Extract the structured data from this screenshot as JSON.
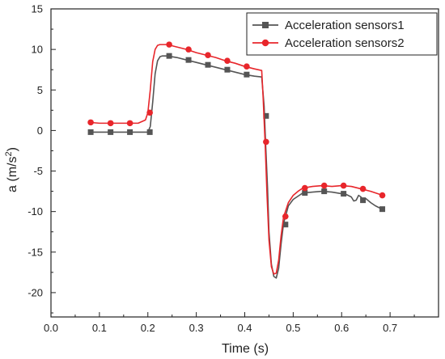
{
  "chart_data": {
    "type": "line",
    "xlabel": "Time (s)",
    "ylabel_main": "a (m/s",
    "ylabel_sup": "2",
    "ylabel_close": ")",
    "xlim": [
      0.0,
      0.8
    ],
    "ylim": [
      -23,
      15
    ],
    "x_ticks": [
      0.0,
      0.1,
      0.2,
      0.3,
      0.4,
      0.5,
      0.6,
      0.7
    ],
    "x_tick_labels": [
      "0.0",
      "0.1",
      "0.2",
      "0.3",
      "0.4",
      "0.5",
      "0.6",
      "0.7"
    ],
    "y_ticks": [
      15,
      10,
      5,
      0,
      -5,
      -10,
      -15,
      -20
    ],
    "y_tick_labels": [
      "15",
      "10",
      "5",
      "0",
      "-5",
      "-10",
      "-15",
      "-20"
    ],
    "grid": false,
    "legend_position": "top-right",
    "series": [
      {
        "name": "Acceleration sensors1",
        "color": "#555555",
        "marker": "square",
        "x": [
          0.08,
          0.1,
          0.12,
          0.14,
          0.16,
          0.18,
          0.2,
          0.205,
          0.21,
          0.215,
          0.22,
          0.225,
          0.23,
          0.24,
          0.26,
          0.28,
          0.3,
          0.32,
          0.34,
          0.36,
          0.38,
          0.4,
          0.42,
          0.435,
          0.44,
          0.443,
          0.447,
          0.45,
          0.455,
          0.46,
          0.465,
          0.47,
          0.475,
          0.48,
          0.49,
          0.5,
          0.51,
          0.52,
          0.54,
          0.56,
          0.58,
          0.6,
          0.61,
          0.62,
          0.625,
          0.63,
          0.635,
          0.64,
          0.645,
          0.65,
          0.66,
          0.67,
          0.68,
          0.685
        ],
        "y": [
          -0.2,
          -0.2,
          -0.2,
          -0.2,
          -0.2,
          -0.2,
          -0.2,
          0.5,
          3.5,
          7.0,
          8.6,
          9.1,
          9.2,
          9.2,
          9.0,
          8.7,
          8.4,
          8.1,
          7.8,
          7.5,
          7.2,
          6.9,
          6.7,
          6.6,
          3.0,
          -1.5,
          -7.0,
          -12.5,
          -16.5,
          -18.0,
          -18.2,
          -17.0,
          -14.0,
          -11.5,
          -9.3,
          -8.5,
          -8.1,
          -7.7,
          -7.6,
          -7.5,
          -7.6,
          -7.8,
          -7.9,
          -8.2,
          -8.7,
          -8.6,
          -8.0,
          -8.2,
          -8.7,
          -8.4,
          -8.9,
          -9.3,
          -9.6,
          -9.7
        ],
        "markers_x": [
          0.082,
          0.123,
          0.163,
          0.204,
          0.244,
          0.284,
          0.324,
          0.364,
          0.404,
          0.444,
          0.484,
          0.524,
          0.564,
          0.604,
          0.644,
          0.684
        ],
        "markers_y": [
          -0.2,
          -0.2,
          -0.2,
          -0.2,
          9.2,
          8.7,
          8.1,
          7.5,
          6.9,
          1.8,
          -11.6,
          -7.7,
          -7.5,
          -7.8,
          -8.6,
          -9.7
        ]
      },
      {
        "name": "Acceleration sensors2",
        "color": "#e8262b",
        "marker": "circle",
        "x": [
          0.08,
          0.1,
          0.12,
          0.14,
          0.16,
          0.18,
          0.195,
          0.2,
          0.205,
          0.21,
          0.215,
          0.22,
          0.225,
          0.23,
          0.24,
          0.26,
          0.28,
          0.3,
          0.32,
          0.34,
          0.36,
          0.38,
          0.4,
          0.42,
          0.435,
          0.438,
          0.442,
          0.446,
          0.45,
          0.455,
          0.46,
          0.465,
          0.47,
          0.475,
          0.48,
          0.49,
          0.5,
          0.51,
          0.52,
          0.54,
          0.56,
          0.58,
          0.6,
          0.62,
          0.64,
          0.66,
          0.68,
          0.685
        ],
        "y": [
          1.0,
          0.9,
          0.9,
          0.9,
          0.9,
          0.9,
          1.3,
          2.2,
          5.0,
          8.5,
          10.0,
          10.5,
          10.6,
          10.6,
          10.6,
          10.3,
          10.0,
          9.6,
          9.3,
          9.0,
          8.6,
          8.3,
          7.9,
          7.6,
          7.4,
          4.0,
          -1.5,
          -8.0,
          -13.5,
          -16.8,
          -17.7,
          -17.6,
          -16.0,
          -13.0,
          -10.7,
          -8.9,
          -8.0,
          -7.5,
          -7.1,
          -6.9,
          -6.8,
          -6.9,
          -6.8,
          -6.9,
          -7.2,
          -7.5,
          -7.9,
          -8.0
        ],
        "markers_x": [
          0.082,
          0.123,
          0.163,
          0.204,
          0.244,
          0.284,
          0.324,
          0.364,
          0.404,
          0.444,
          0.484,
          0.524,
          0.564,
          0.604,
          0.644,
          0.684
        ],
        "markers_y": [
          1.0,
          0.9,
          0.9,
          2.2,
          10.6,
          10.0,
          9.3,
          8.6,
          7.9,
          -1.4,
          -10.6,
          -7.1,
          -6.8,
          -6.8,
          -7.2,
          -8.0
        ]
      }
    ]
  }
}
